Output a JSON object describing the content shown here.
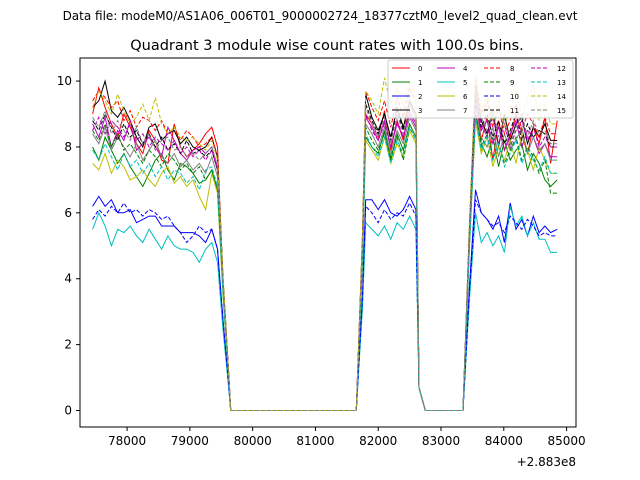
{
  "chart_data": {
    "type": "line",
    "suptitle": "Data file: modeM0/AS1A06_006T01_9000002724_18377cztM0_level2_quad_clean.evt",
    "title": "Quadrant 3 module wise count rates with 100.0s bins.",
    "xlabel": "",
    "ylabel": "",
    "x_offset_label": "+2.883e8",
    "xlim": [
      77250,
      85150
    ],
    "ylim": [
      -0.5,
      10.7
    ],
    "xticks": [
      78000,
      79000,
      80000,
      81000,
      82000,
      83000,
      84000,
      85000
    ],
    "yticks": [
      0,
      2,
      4,
      6,
      8,
      10
    ],
    "bin_width_s": 100,
    "x_start": 77450,
    "legend_columns": 4,
    "series": [
      {
        "name": "0",
        "color": "#ff0000",
        "dash": false,
        "base": 8.5,
        "seg1": [
          9.0,
          9.8,
          9.2,
          8.7,
          8.3,
          9.0,
          8.6,
          8.1,
          7.8,
          8.5,
          8.2,
          7.6,
          7.5,
          8.7,
          8.0,
          7.7,
          7.9,
          8.1,
          8.4,
          8.6
        ],
        "seg2": [
          9.0,
          8.7,
          8.3,
          9.1,
          7.9,
          8.8,
          8.2,
          9.3
        ],
        "seg3": [
          9.6,
          8.2,
          8.9,
          7.6,
          8.8,
          7.9,
          8.3,
          9.0,
          8.4,
          7.8,
          8.6,
          8.1,
          8.9,
          7.5
        ],
        "end_tail": 8.8
      },
      {
        "name": "1",
        "color": "#008000",
        "dash": false,
        "base": 7.9,
        "seg1": [
          8.0,
          7.6,
          8.3,
          7.9,
          7.5,
          7.8,
          7.4,
          7.1,
          6.8,
          7.2,
          7.6,
          7.8,
          7.3,
          7.0,
          7.5,
          7.4,
          7.2,
          6.9,
          7.0,
          7.3
        ],
        "seg2": [
          8.3,
          8.0,
          7.8,
          8.5,
          7.6,
          8.4,
          7.9,
          8.7
        ],
        "seg3": [
          9.0,
          8.1,
          7.7,
          8.3,
          7.4,
          8.2,
          7.6,
          7.9,
          8.1,
          7.3,
          7.8,
          7.5,
          7.0,
          6.8
        ],
        "end_tail": 7.0
      },
      {
        "name": "2",
        "color": "#0000ff",
        "dash": false,
        "base": 6.0,
        "seg1": [
          6.2,
          6.5,
          6.2,
          6.4,
          6.0,
          6.0,
          6.1,
          5.7,
          5.8,
          5.9,
          5.9,
          5.6,
          5.6,
          5.6,
          5.4,
          5.4,
          5.4,
          5.3,
          5.1,
          5.5
        ],
        "seg2": [
          6.4,
          6.4,
          6.1,
          6.4,
          6.0,
          5.9,
          6.1,
          6.5
        ],
        "seg3": [
          6.7,
          6.0,
          5.8,
          5.5,
          5.9,
          5.1,
          6.3,
          5.5,
          5.8,
          5.3,
          5.9,
          5.4,
          5.6,
          5.4
        ],
        "end_tail": 5.5
      },
      {
        "name": "3",
        "color": "#000000",
        "dash": false,
        "base": 8.8,
        "seg1": [
          9.2,
          9.4,
          10.0,
          9.1,
          8.9,
          9.2,
          8.8,
          8.3,
          8.0,
          8.6,
          8.7,
          8.2,
          8.4,
          8.5,
          8.1,
          8.3,
          8.0,
          7.9,
          8.0,
          8.3
        ],
        "seg2": [
          9.6,
          8.9,
          8.5,
          9.0,
          8.3,
          9.2,
          8.6,
          9.4
        ],
        "seg3": [
          9.9,
          8.8,
          8.4,
          9.1,
          8.0,
          9.0,
          8.2,
          8.7,
          8.9,
          8.1,
          8.6,
          8.3,
          8.7,
          8.2
        ],
        "end_tail": 8.2
      },
      {
        "name": "4",
        "color": "#bf00bf",
        "dash": false,
        "base": 8.4,
        "seg1": [
          8.7,
          8.3,
          8.9,
          8.0,
          8.5,
          8.2,
          8.8,
          7.9,
          8.1,
          8.3,
          8.0,
          7.7,
          8.6,
          8.2,
          7.8,
          7.6,
          7.9,
          8.0,
          7.8,
          8.0
        ],
        "seg2": [
          8.9,
          8.6,
          8.2,
          8.8,
          8.0,
          8.7,
          8.3,
          9.0
        ],
        "seg3": [
          9.3,
          8.5,
          8.8,
          8.1,
          8.6,
          7.9,
          8.4,
          8.8,
          8.0,
          8.5,
          8.3,
          7.8,
          8.1,
          7.7
        ],
        "end_tail": 7.7
      },
      {
        "name": "5",
        "color": "#00bfbf",
        "dash": false,
        "base": 5.4,
        "seg1": [
          5.5,
          6.0,
          5.6,
          5.0,
          5.5,
          5.4,
          5.6,
          5.3,
          5.1,
          5.5,
          5.2,
          4.9,
          5.3,
          5.0,
          4.9,
          4.9,
          4.8,
          4.5,
          4.9,
          5.1
        ],
        "seg2": [
          5.7,
          5.5,
          5.3,
          5.6,
          5.2,
          5.7,
          5.5,
          5.9
        ],
        "seg3": [
          6.0,
          5.1,
          5.4,
          5.0,
          5.3,
          4.8,
          6.2,
          5.6,
          5.9,
          5.3,
          5.7,
          5.2,
          5.2,
          4.8
        ],
        "end_tail": 4.8
      },
      {
        "name": "6",
        "color": "#bfbf00",
        "dash": false,
        "base": 7.6,
        "seg1": [
          7.5,
          7.3,
          7.8,
          7.2,
          7.6,
          7.4,
          7.0,
          7.1,
          7.3,
          7.0,
          6.8,
          7.2,
          7.4,
          6.9,
          7.1,
          6.8,
          7.0,
          6.5,
          6.1,
          7.2
        ],
        "seg2": [
          8.2,
          7.9,
          7.6,
          8.3,
          7.5,
          8.1,
          7.7,
          8.5
        ],
        "seg3": [
          8.8,
          7.8,
          8.3,
          7.4,
          8.0,
          7.6,
          8.2,
          7.5,
          8.4,
          7.9,
          7.3,
          8.0,
          7.6,
          7.2
        ],
        "end_tail": 7.2
      },
      {
        "name": "7",
        "color": "#808080",
        "dash": false,
        "base": 8.1,
        "seg1": [
          8.4,
          8.1,
          8.6,
          7.9,
          8.3,
          8.0,
          7.7,
          8.1,
          7.6,
          7.9,
          8.2,
          7.7,
          7.5,
          7.8,
          7.4,
          7.6,
          7.3,
          7.5,
          7.2,
          7.7
        ],
        "seg2": [
          8.7,
          8.4,
          8.0,
          8.6,
          7.8,
          8.5,
          8.1,
          8.9
        ],
        "seg3": [
          9.1,
          8.3,
          8.0,
          8.6,
          7.7,
          8.4,
          7.9,
          8.2,
          8.6,
          7.8,
          8.3,
          7.9,
          8.1,
          7.6
        ],
        "end_tail": 7.6
      },
      {
        "name": "8",
        "color": "#ff0000",
        "dash": true,
        "base": 8.9,
        "seg1": [
          9.4,
          9.7,
          9.5,
          9.2,
          9.4,
          8.8,
          9.1,
          8.6,
          8.9,
          8.8,
          8.5,
          8.8,
          8.4,
          8.6,
          8.2,
          8.5,
          8.3,
          8.0,
          8.1,
          8.3
        ],
        "seg2": [
          9.7,
          9.2,
          8.8,
          9.4,
          8.6,
          9.5,
          8.9,
          9.8
        ],
        "seg3": [
          10.0,
          9.0,
          9.4,
          8.6,
          9.2,
          8.4,
          8.8,
          9.3,
          8.5,
          9.0,
          8.7,
          8.3,
          8.9,
          8.4
        ],
        "end_tail": 8.4
      },
      {
        "name": "9",
        "color": "#008000",
        "dash": true,
        "base": 8.2,
        "seg1": [
          8.5,
          8.2,
          8.7,
          8.0,
          8.4,
          7.9,
          8.1,
          7.8,
          7.5,
          7.9,
          7.7,
          7.4,
          7.8,
          7.6,
          7.3,
          7.5,
          7.2,
          7.4,
          7.0,
          7.3
        ],
        "seg2": [
          8.6,
          8.2,
          7.9,
          8.4,
          7.7,
          8.3,
          7.6,
          8.6
        ],
        "seg3": [
          9.0,
          8.0,
          8.4,
          7.6,
          8.1,
          7.5,
          7.9,
          8.3,
          7.6,
          8.0,
          7.7,
          7.2,
          7.6,
          6.6
        ],
        "end_tail": 6.6
      },
      {
        "name": "10",
        "color": "#0000ff",
        "dash": true,
        "base": 6.0,
        "seg1": [
          5.8,
          6.1,
          5.9,
          6.2,
          6.0,
          6.3,
          6.0,
          6.1,
          5.9,
          6.1,
          6.0,
          5.8,
          5.9,
          5.6,
          5.4,
          5.1,
          5.3,
          5.6,
          5.4,
          5.5
        ],
        "seg2": [
          6.2,
          6.0,
          5.7,
          6.1,
          5.8,
          6.0,
          5.9,
          6.3
        ],
        "seg3": [
          6.4,
          6.0,
          5.8,
          5.6,
          5.7,
          5.4,
          5.9,
          5.7,
          5.5,
          5.8,
          5.6,
          5.3,
          5.4,
          5.3
        ],
        "end_tail": 5.3
      },
      {
        "name": "11",
        "color": "#000000",
        "dash": true,
        "base": 8.7,
        "seg1": [
          8.8,
          8.5,
          9.0,
          8.6,
          8.2,
          8.7,
          8.3,
          8.5,
          8.1,
          8.4,
          8.0,
          8.3,
          7.9,
          8.1,
          7.8,
          8.2,
          7.8,
          7.9,
          7.7,
          7.9
        ],
        "seg2": [
          9.3,
          8.8,
          8.4,
          9.0,
          8.2,
          9.1,
          8.5,
          9.4
        ],
        "seg3": [
          9.6,
          8.6,
          9.0,
          8.3,
          8.8,
          8.1,
          8.5,
          9.0,
          8.2,
          8.7,
          8.3,
          8.5,
          8.4,
          8.0
        ],
        "end_tail": 8.0
      },
      {
        "name": "12",
        "color": "#bf00bf",
        "dash": true,
        "base": 8.3,
        "seg1": [
          8.5,
          8.9,
          8.4,
          8.8,
          8.6,
          8.3,
          8.7,
          8.2,
          8.4,
          8.0,
          8.3,
          8.1,
          7.9,
          8.2,
          7.8,
          8.0,
          7.7,
          7.9,
          7.6,
          7.9
        ],
        "seg2": [
          9.0,
          8.5,
          8.2,
          8.7,
          8.0,
          8.8,
          8.3,
          9.1
        ],
        "seg3": [
          9.4,
          8.7,
          8.3,
          8.9,
          8.1,
          8.7,
          8.0,
          8.5,
          8.8,
          8.2,
          8.6,
          8.0,
          8.3,
          8.0
        ],
        "end_tail": 8.0
      },
      {
        "name": "13",
        "color": "#00bfbf",
        "dash": true,
        "base": 7.8,
        "seg1": [
          7.9,
          7.6,
          8.1,
          7.7,
          7.3,
          7.8,
          7.4,
          7.6,
          7.2,
          7.5,
          7.1,
          7.4,
          7.0,
          7.3,
          7.2,
          6.9,
          7.1,
          6.7,
          7.3,
          7.4
        ],
        "seg2": [
          8.4,
          8.0,
          7.7,
          8.3,
          7.5,
          8.2,
          7.8,
          8.6
        ],
        "seg3": [
          8.9,
          7.9,
          8.3,
          7.6,
          8.1,
          7.4,
          7.8,
          8.2,
          7.5,
          7.9,
          7.6,
          7.3,
          7.7,
          7.2
        ],
        "end_tail": 7.2
      },
      {
        "name": "14",
        "color": "#bfbf00",
        "dash": true,
        "base": 9.0,
        "seg1": [
          9.2,
          9.7,
          9.4,
          9.0,
          9.6,
          9.1,
          8.7,
          8.9,
          9.3,
          8.8,
          9.5,
          8.7,
          8.4,
          8.6,
          8.3,
          8.2,
          8.3,
          8.1,
          7.9,
          8.2
        ],
        "seg2": [
          9.7,
          9.4,
          9.0,
          10.1,
          9.3,
          9.8,
          9.2,
          10.0
        ],
        "seg3": [
          10.2,
          9.1,
          9.6,
          8.8,
          9.4,
          8.6,
          9.2,
          9.7,
          8.9,
          9.5,
          9.9,
          8.8,
          9.3,
          8.7
        ],
        "end_tail": 8.7
      },
      {
        "name": "15",
        "color": "#808080",
        "dash": true,
        "base": 8.6,
        "seg1": [
          8.9,
          8.6,
          9.1,
          8.4,
          8.8,
          8.5,
          8.2,
          8.6,
          8.1,
          8.4,
          7.9,
          8.2,
          8.3,
          7.9,
          8.0,
          7.7,
          7.8,
          7.6,
          7.8,
          8.0
        ],
        "seg2": [
          9.2,
          8.7,
          8.3,
          8.9,
          8.1,
          9.0,
          8.4,
          9.3
        ],
        "seg3": [
          9.8,
          8.9,
          8.5,
          9.1,
          8.3,
          8.9,
          8.1,
          8.6,
          9.0,
          8.3,
          8.8,
          8.4,
          8.5,
          8.1
        ],
        "end_tail": 8.1
      }
    ]
  }
}
